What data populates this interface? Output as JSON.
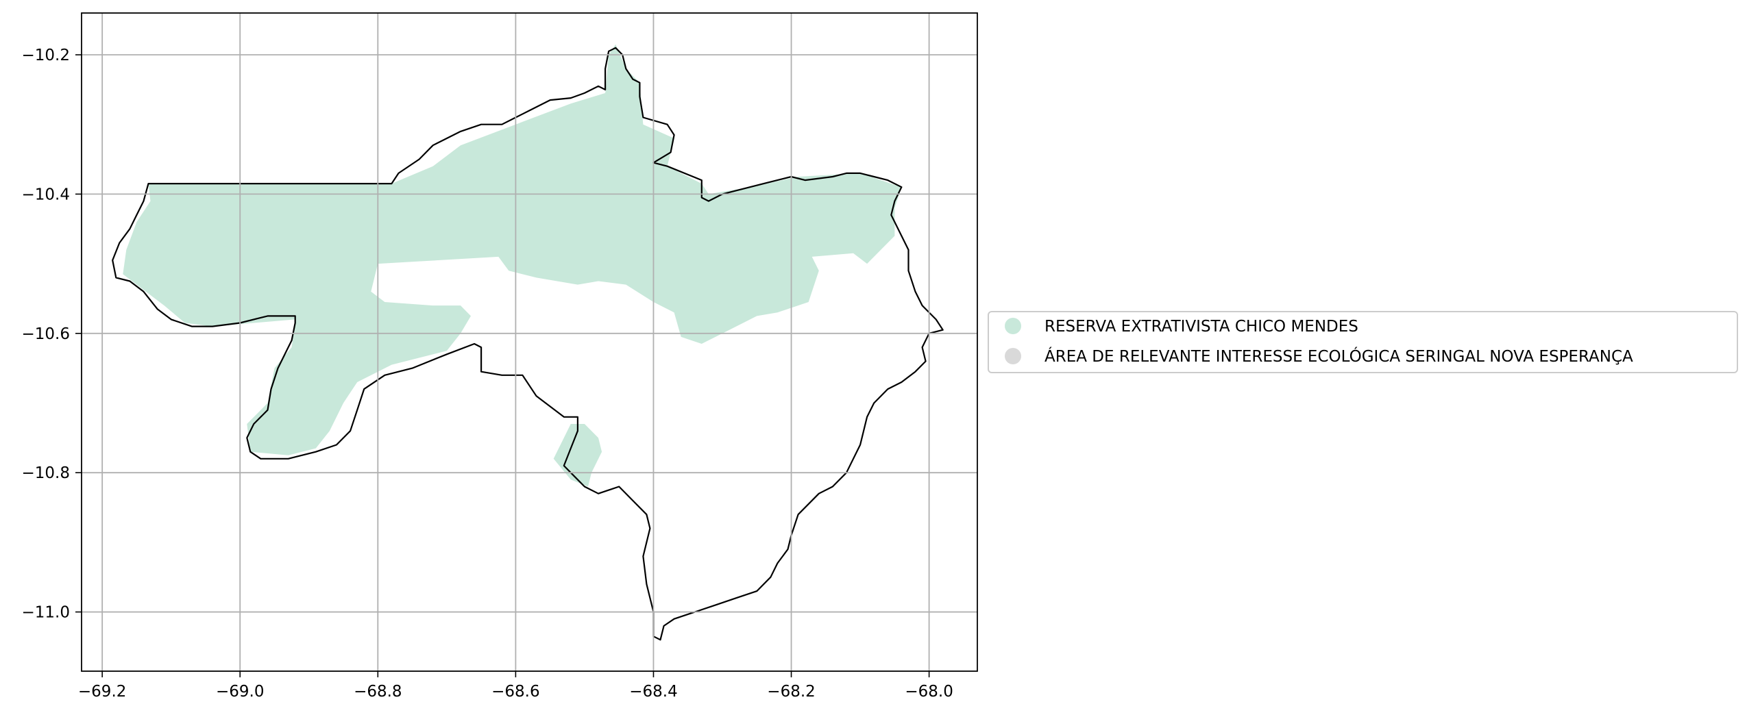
{
  "map": {
    "title": "",
    "xlim": [
      -69.23,
      -67.93
    ],
    "ylim": [
      -11.085,
      -10.14
    ],
    "grid": true,
    "x_ticks": [
      {
        "value": -69.2,
        "label": "−69.2"
      },
      {
        "value": -69.0,
        "label": "−69.0"
      },
      {
        "value": -68.8,
        "label": "−68.8"
      },
      {
        "value": -68.6,
        "label": "−68.6"
      },
      {
        "value": -68.4,
        "label": "−68.4"
      },
      {
        "value": -68.2,
        "label": "−68.2"
      },
      {
        "value": -68.0,
        "label": "−68.0"
      }
    ],
    "y_ticks": [
      {
        "value": -10.2,
        "label": "−10.2"
      },
      {
        "value": -10.4,
        "label": "−10.4"
      },
      {
        "value": -10.6,
        "label": "−10.6"
      },
      {
        "value": -10.8,
        "label": "−10.8"
      },
      {
        "value": -11.0,
        "label": "−11.0"
      }
    ],
    "colors": {
      "reserve_fill": "#c8e8da",
      "arie_fill": "#d9d9d9",
      "boundary": "#000000",
      "grid": "#b0b0b0",
      "legend_border": "#cccccc"
    },
    "legend": {
      "position": "center-left outside",
      "items": [
        {
          "label": "RESERVA EXTRATIVISTA CHICO MENDES",
          "color": "#c8e8da"
        },
        {
          "label": "ÁREA DE RELEVANTE INTERESSE ECOLÓGICA SERINGAL NOVA ESPERANÇA",
          "color": "#d9d9d9"
        }
      ]
    },
    "reserve_polygons": [
      [
        [
          -69.133,
          -10.385
        ],
        [
          -68.78,
          -10.385
        ],
        [
          -68.72,
          -10.36
        ],
        [
          -68.68,
          -10.33
        ],
        [
          -68.6,
          -10.3
        ],
        [
          -68.52,
          -10.27
        ],
        [
          -68.47,
          -10.255
        ],
        [
          -68.465,
          -10.2
        ],
        [
          -68.455,
          -10.185
        ],
        [
          -68.44,
          -10.22
        ],
        [
          -68.42,
          -10.24
        ],
        [
          -68.415,
          -10.3
        ],
        [
          -68.37,
          -10.32
        ],
        [
          -68.38,
          -10.36
        ],
        [
          -68.33,
          -10.385
        ],
        [
          -68.32,
          -10.4
        ],
        [
          -68.26,
          -10.39
        ],
        [
          -68.19,
          -10.375
        ],
        [
          -68.1,
          -10.37
        ],
        [
          -68.04,
          -10.39
        ],
        [
          -68.05,
          -10.42
        ],
        [
          -68.05,
          -10.46
        ],
        [
          -68.09,
          -10.5
        ],
        [
          -68.11,
          -10.485
        ],
        [
          -68.17,
          -10.49
        ],
        [
          -68.16,
          -10.51
        ],
        [
          -68.175,
          -10.555
        ],
        [
          -68.22,
          -10.57
        ],
        [
          -68.25,
          -10.575
        ],
        [
          -68.29,
          -10.595
        ],
        [
          -68.33,
          -10.615
        ],
        [
          -68.36,
          -10.605
        ],
        [
          -68.37,
          -10.57
        ],
        [
          -68.4,
          -10.555
        ],
        [
          -68.44,
          -10.53
        ],
        [
          -68.48,
          -10.525
        ],
        [
          -68.51,
          -10.53
        ],
        [
          -68.57,
          -10.52
        ],
        [
          -68.61,
          -10.51
        ],
        [
          -68.625,
          -10.49
        ],
        [
          -68.8,
          -10.5
        ],
        [
          -68.81,
          -10.54
        ],
        [
          -68.79,
          -10.555
        ],
        [
          -68.72,
          -10.56
        ],
        [
          -68.68,
          -10.56
        ],
        [
          -68.665,
          -10.575
        ],
        [
          -68.68,
          -10.6
        ],
        [
          -68.7,
          -10.625
        ],
        [
          -68.78,
          -10.645
        ],
        [
          -68.83,
          -10.67
        ],
        [
          -68.85,
          -10.7
        ],
        [
          -68.87,
          -10.74
        ],
        [
          -68.89,
          -10.765
        ],
        [
          -68.93,
          -10.775
        ],
        [
          -68.985,
          -10.77
        ],
        [
          -68.99,
          -10.73
        ],
        [
          -68.96,
          -10.7
        ],
        [
          -68.95,
          -10.65
        ],
        [
          -68.925,
          -10.62
        ],
        [
          -68.92,
          -10.58
        ],
        [
          -68.98,
          -10.585
        ],
        [
          -69.04,
          -10.59
        ],
        [
          -69.08,
          -10.585
        ],
        [
          -69.11,
          -10.56
        ],
        [
          -69.15,
          -10.53
        ],
        [
          -69.17,
          -10.515
        ],
        [
          -69.165,
          -10.48
        ],
        [
          -69.15,
          -10.44
        ],
        [
          -69.13,
          -10.41
        ]
      ],
      [
        [
          -68.52,
          -10.73
        ],
        [
          -68.5,
          -10.73
        ],
        [
          -68.48,
          -10.75
        ],
        [
          -68.475,
          -10.77
        ],
        [
          -68.49,
          -10.8
        ],
        [
          -68.495,
          -10.82
        ],
        [
          -68.52,
          -10.81
        ],
        [
          -68.545,
          -10.78
        ],
        [
          -68.53,
          -10.75
        ]
      ]
    ],
    "boundary_polygons": [
      [
        [
          -69.133,
          -10.385
        ],
        [
          -68.78,
          -10.385
        ],
        [
          -68.77,
          -10.37
        ],
        [
          -68.74,
          -10.35
        ],
        [
          -68.72,
          -10.33
        ],
        [
          -68.7,
          -10.32
        ],
        [
          -68.68,
          -10.31
        ],
        [
          -68.65,
          -10.3
        ],
        [
          -68.62,
          -10.3
        ],
        [
          -68.6,
          -10.29
        ],
        [
          -68.58,
          -10.28
        ],
        [
          -68.55,
          -10.265
        ],
        [
          -68.52,
          -10.262
        ],
        [
          -68.5,
          -10.255
        ],
        [
          -68.48,
          -10.245
        ],
        [
          -68.47,
          -10.25
        ],
        [
          -68.47,
          -10.22
        ],
        [
          -68.465,
          -10.195
        ],
        [
          -68.455,
          -10.19
        ],
        [
          -68.445,
          -10.2
        ],
        [
          -68.44,
          -10.22
        ],
        [
          -68.43,
          -10.235
        ],
        [
          -68.42,
          -10.24
        ],
        [
          -68.42,
          -10.26
        ],
        [
          -68.415,
          -10.29
        ],
        [
          -68.38,
          -10.3
        ],
        [
          -68.37,
          -10.315
        ],
        [
          -68.375,
          -10.34
        ],
        [
          -68.4,
          -10.355
        ],
        [
          -68.38,
          -10.36
        ],
        [
          -68.33,
          -10.38
        ],
        [
          -68.33,
          -10.405
        ],
        [
          -68.32,
          -10.41
        ],
        [
          -68.3,
          -10.4
        ],
        [
          -68.26,
          -10.39
        ],
        [
          -68.24,
          -10.385
        ],
        [
          -68.2,
          -10.375
        ],
        [
          -68.18,
          -10.38
        ],
        [
          -68.14,
          -10.375
        ],
        [
          -68.12,
          -10.37
        ],
        [
          -68.1,
          -10.37
        ],
        [
          -68.08,
          -10.375
        ],
        [
          -68.06,
          -10.38
        ],
        [
          -68.04,
          -10.39
        ],
        [
          -68.05,
          -10.41
        ],
        [
          -68.055,
          -10.43
        ],
        [
          -68.04,
          -10.46
        ],
        [
          -68.03,
          -10.48
        ],
        [
          -68.03,
          -10.51
        ],
        [
          -68.02,
          -10.54
        ],
        [
          -68.01,
          -10.56
        ],
        [
          -67.99,
          -10.58
        ],
        [
          -67.98,
          -10.595
        ],
        [
          -68.0,
          -10.6
        ],
        [
          -68.01,
          -10.62
        ],
        [
          -68.005,
          -10.64
        ],
        [
          -68.02,
          -10.655
        ],
        [
          -68.04,
          -10.67
        ],
        [
          -68.06,
          -10.68
        ],
        [
          -68.08,
          -10.7
        ],
        [
          -68.09,
          -10.72
        ],
        [
          -68.1,
          -10.76
        ],
        [
          -68.12,
          -10.8
        ],
        [
          -68.14,
          -10.82
        ],
        [
          -68.16,
          -10.83
        ],
        [
          -68.19,
          -10.86
        ],
        [
          -68.2,
          -10.89
        ],
        [
          -68.205,
          -10.91
        ],
        [
          -68.22,
          -10.93
        ],
        [
          -68.23,
          -10.95
        ],
        [
          -68.25,
          -10.97
        ],
        [
          -68.28,
          -10.98
        ],
        [
          -68.31,
          -10.99
        ],
        [
          -68.34,
          -11.0
        ],
        [
          -68.37,
          -11.01
        ],
        [
          -68.385,
          -11.02
        ],
        [
          -68.39,
          -11.04
        ],
        [
          -68.4,
          -11.035
        ],
        [
          -68.4,
          -11.0
        ],
        [
          -68.41,
          -10.96
        ],
        [
          -68.415,
          -10.92
        ],
        [
          -68.405,
          -10.88
        ],
        [
          -68.41,
          -10.86
        ],
        [
          -68.43,
          -10.84
        ],
        [
          -68.45,
          -10.82
        ],
        [
          -68.48,
          -10.83
        ],
        [
          -68.5,
          -10.82
        ],
        [
          -68.52,
          -10.8
        ],
        [
          -68.53,
          -10.79
        ],
        [
          -68.52,
          -10.765
        ],
        [
          -68.51,
          -10.74
        ],
        [
          -68.51,
          -10.72
        ],
        [
          -68.53,
          -10.72
        ],
        [
          -68.57,
          -10.69
        ],
        [
          -68.59,
          -10.66
        ],
        [
          -68.62,
          -10.66
        ],
        [
          -68.65,
          -10.655
        ],
        [
          -68.65,
          -10.62
        ],
        [
          -68.66,
          -10.615
        ],
        [
          -68.7,
          -10.63
        ],
        [
          -68.75,
          -10.65
        ],
        [
          -68.79,
          -10.66
        ],
        [
          -68.82,
          -10.68
        ],
        [
          -68.83,
          -10.71
        ],
        [
          -68.84,
          -10.74
        ],
        [
          -68.86,
          -10.76
        ],
        [
          -68.89,
          -10.77
        ],
        [
          -68.93,
          -10.78
        ],
        [
          -68.97,
          -10.78
        ],
        [
          -68.985,
          -10.77
        ],
        [
          -68.99,
          -10.75
        ],
        [
          -68.98,
          -10.73
        ],
        [
          -68.96,
          -10.71
        ],
        [
          -68.955,
          -10.68
        ],
        [
          -68.945,
          -10.65
        ],
        [
          -68.925,
          -10.61
        ],
        [
          -68.92,
          -10.585
        ],
        [
          -68.92,
          -10.575
        ],
        [
          -68.96,
          -10.575
        ],
        [
          -69.0,
          -10.585
        ],
        [
          -69.04,
          -10.59
        ],
        [
          -69.07,
          -10.59
        ],
        [
          -69.1,
          -10.58
        ],
        [
          -69.12,
          -10.565
        ],
        [
          -69.14,
          -10.54
        ],
        [
          -69.16,
          -10.525
        ],
        [
          -69.18,
          -10.52
        ],
        [
          -69.185,
          -10.495
        ],
        [
          -69.175,
          -10.47
        ],
        [
          -69.16,
          -10.45
        ],
        [
          -69.15,
          -10.43
        ],
        [
          -69.14,
          -10.41
        ]
      ]
    ]
  }
}
